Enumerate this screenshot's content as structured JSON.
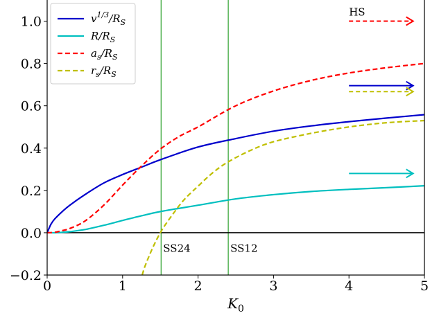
{
  "chart_data": {
    "type": "line",
    "xlim": [
      0,
      5
    ],
    "ylim": [
      -0.2,
      1.1
    ],
    "x_ticks": [
      0,
      1,
      2,
      3,
      4,
      5
    ],
    "x_tick_labels": [
      "0",
      "1",
      "2",
      "3",
      "4",
      "5"
    ],
    "y_ticks": [
      -0.2,
      0.0,
      0.2,
      0.4,
      0.6,
      0.8,
      1.0
    ],
    "y_tick_labels": [
      "−0.2",
      "0.0",
      "0.2",
      "0.4",
      "0.6",
      "0.8",
      "1.0"
    ],
    "xlabel": "K",
    "xlabel_sub": "0",
    "ylabel": "",
    "grid": false,
    "legend_position": "upper-left",
    "horizontal_line": {
      "y": 0.0,
      "color": "#000000"
    },
    "vertical_lines": [
      {
        "x": 1.51,
        "label": "SS24",
        "color": "#2ca02c"
      },
      {
        "x": 2.4,
        "label": "SS12",
        "color": "#2ca02c"
      }
    ],
    "asymptote_arrows": [
      {
        "label": "HS",
        "y": 1.0,
        "color": "#ff0000",
        "dashed": true,
        "x_start": 4.0,
        "x_end": 4.85
      },
      {
        "label": "",
        "y": 0.695,
        "color": "#0000cc",
        "dashed": false,
        "x_start": 4.0,
        "x_end": 4.85
      },
      {
        "label": "",
        "y": 0.667,
        "color": "#bfbf00",
        "dashed": true,
        "x_start": 4.0,
        "x_end": 4.85
      },
      {
        "label": "",
        "y": 0.28,
        "color": "#00bfbf",
        "dashed": false,
        "x_start": 4.0,
        "x_end": 4.85
      }
    ],
    "series": [
      {
        "name": "v^{1/3}/R_S",
        "legend_parts": {
          "base": "v",
          "sup": "1/3",
          "mid": "/R",
          "sub": "S"
        },
        "color": "#0000cc",
        "dashed": false,
        "x": [
          0,
          0.05,
          0.1,
          0.2,
          0.3,
          0.5,
          0.75,
          1.0,
          1.25,
          1.5,
          2.0,
          2.5,
          3.0,
          3.5,
          4.0,
          4.5,
          5.0
        ],
        "y": [
          0.0,
          0.04,
          0.065,
          0.1,
          0.13,
          0.18,
          0.235,
          0.275,
          0.31,
          0.345,
          0.405,
          0.445,
          0.48,
          0.505,
          0.525,
          0.542,
          0.558
        ]
      },
      {
        "name": "R/R_S",
        "legend_parts": {
          "base": "R",
          "sup": "",
          "mid": "/R",
          "sub": "S"
        },
        "color": "#00bfbf",
        "dashed": false,
        "x": [
          0,
          0.1,
          0.2,
          0.3,
          0.5,
          0.75,
          1.0,
          1.25,
          1.5,
          2.0,
          2.5,
          3.0,
          3.5,
          4.0,
          4.5,
          5.0
        ],
        "y": [
          0.0,
          0.0,
          0.002,
          0.005,
          0.015,
          0.035,
          0.058,
          0.08,
          0.1,
          0.13,
          0.16,
          0.18,
          0.195,
          0.205,
          0.213,
          0.222
        ]
      },
      {
        "name": "a_s/R_S",
        "legend_parts": {
          "base": "a",
          "sub0": "s",
          "mid": "/R",
          "sub": "S"
        },
        "color": "#ff0000",
        "dashed": true,
        "x": [
          0,
          0.1,
          0.2,
          0.3,
          0.5,
          0.75,
          1.0,
          1.25,
          1.5,
          1.75,
          2.0,
          2.5,
          3.0,
          3.5,
          4.0,
          4.5,
          5.0
        ],
        "y": [
          0.0,
          0.002,
          0.01,
          0.02,
          0.055,
          0.13,
          0.225,
          0.315,
          0.395,
          0.455,
          0.5,
          0.6,
          0.67,
          0.72,
          0.755,
          0.78,
          0.8
        ]
      },
      {
        "name": "r_s/R_S",
        "legend_parts": {
          "base": "r",
          "sub0": "s",
          "mid": "/R",
          "sub": "S"
        },
        "color": "#bfbf00",
        "dashed": true,
        "x": [
          1.26,
          1.3,
          1.4,
          1.5,
          1.6,
          1.8,
          2.0,
          2.2,
          2.4,
          2.7,
          3.0,
          3.5,
          4.0,
          4.5,
          5.0
        ],
        "y": [
          -0.2,
          -0.155,
          -0.07,
          0.0,
          0.055,
          0.15,
          0.22,
          0.285,
          0.335,
          0.39,
          0.43,
          0.47,
          0.5,
          0.52,
          0.53
        ]
      }
    ]
  }
}
